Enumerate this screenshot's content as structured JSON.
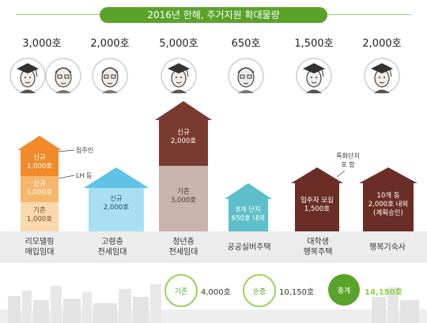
{
  "title": "2016년 한해, 주거지원 확대물량",
  "colors": {
    "accent_green": "#5aa32a",
    "orange": "#f08a2a",
    "light_orange": "#f6b66b",
    "pale_orange": "#fbd8ad",
    "sky": "#5fc2e6",
    "sky_light": "#a9dff2",
    "brown": "#7a3b2f",
    "taupe": "#c8b3ad",
    "teal": "#5cbfc9",
    "dark_brown": "#6b2e26"
  },
  "groups": [
    {
      "count": "3,000호",
      "category": [
        "리모델링",
        "매입임대"
      ],
      "faces": [
        "graduate-face-icon",
        "elderly-face-icon"
      ]
    },
    {
      "count": "2,000호",
      "category": [
        "고령층",
        "전세임대"
      ],
      "faces": [
        "elderly-face-icon"
      ]
    },
    {
      "count": "5,000호",
      "category": [
        "청년층",
        "전세임대"
      ],
      "faces": [
        "graduate-face-icon"
      ]
    },
    {
      "count": "650호",
      "category": [
        "공공실버주택"
      ],
      "faces": [
        "elderly-face-icon"
      ]
    },
    {
      "count": "1,500호",
      "category": [
        "대학생",
        "행복주택"
      ],
      "faces": [
        "graduate-face-icon"
      ]
    },
    {
      "count": "2,000호",
      "category": [
        "행복기숙사"
      ],
      "faces": [
        "graduate-face-icon"
      ]
    }
  ],
  "houses": {
    "remodel": {
      "top": [
        "신규",
        "1,000호"
      ],
      "middle": [
        "신규",
        "1,000호"
      ],
      "bottom": [
        "기존",
        "1,000호"
      ],
      "ann_top": "집주인",
      "ann_mid": "LH 등"
    },
    "elderly": {
      "label": [
        "신규",
        "2,000호"
      ]
    },
    "youth": {
      "top": [
        "신규",
        "2,000호"
      ],
      "bottom": [
        "기존",
        "3,000호"
      ]
    },
    "silver": {
      "label": [
        "8개 단지",
        "650호 내외"
      ]
    },
    "student": {
      "label": [
        "입주자 모집",
        "1,500호"
      ],
      "ann": [
        "특화단지",
        "포 함"
      ]
    },
    "dorm": {
      "label": [
        "10개 동",
        "2,000호 내외",
        "(계획승인)"
      ]
    }
  },
  "summary": {
    "existing_label": "기존",
    "existing_value": "4,000호",
    "net_label": "순증",
    "net_value": "10,150호",
    "total_label": "총계",
    "total_value": "14,150호"
  }
}
